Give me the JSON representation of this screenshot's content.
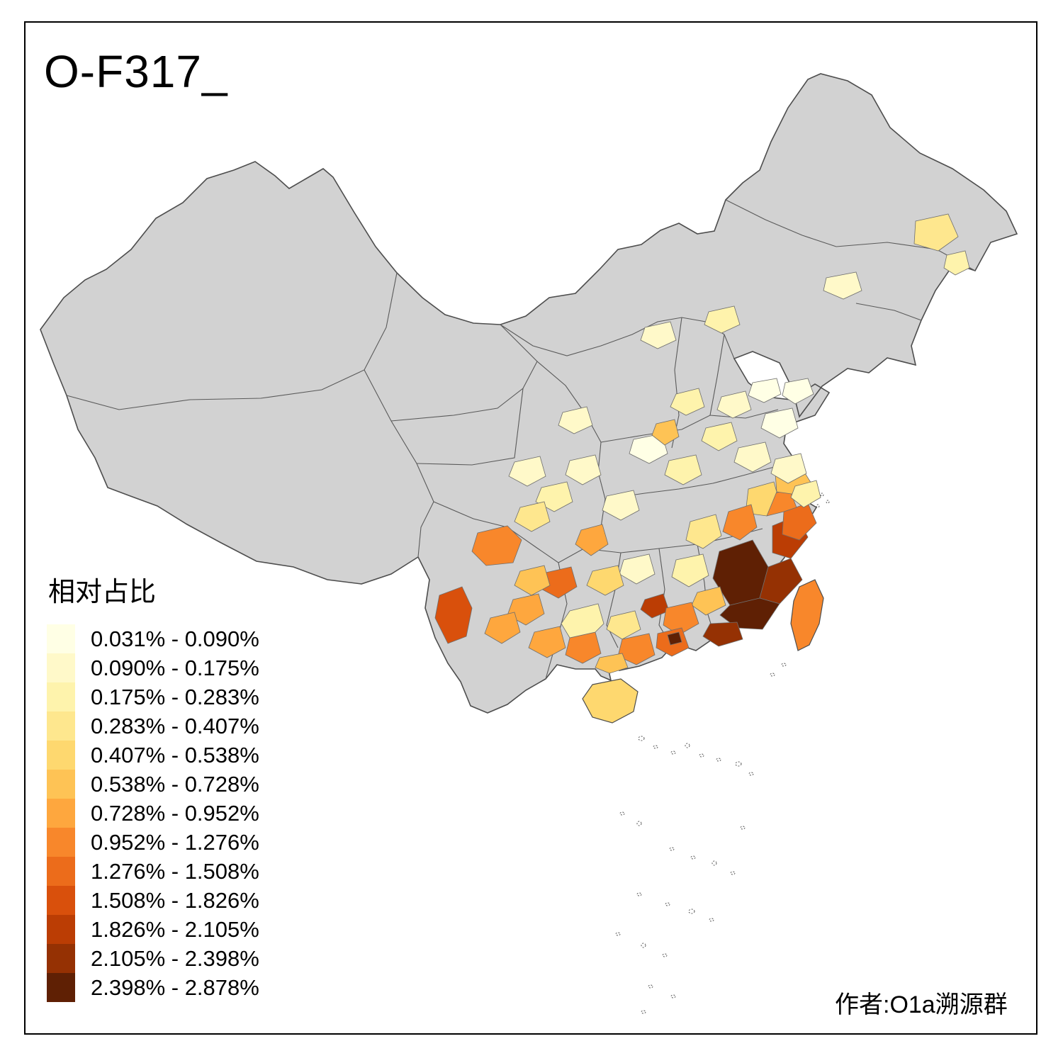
{
  "title": "O-F317_",
  "credit": "作者:O1a溯源群",
  "legend": {
    "title": "相对占比",
    "items": [
      "0.031% - 0.090%",
      "0.090% - 0.175%",
      "0.175% - 0.283%",
      "0.283% - 0.407%",
      "0.407% - 0.538%",
      "0.538% - 0.728%",
      "0.728% - 0.952%",
      "0.952% - 1.276%",
      "1.276% - 1.508%",
      "1.508% - 1.826%",
      "1.826% - 2.105%",
      "2.105% - 2.398%",
      "2.398% - 2.878%"
    ]
  },
  "palette": {
    "classes": [
      "#FFFFE5",
      "#FFF9C9",
      "#FEF3AC",
      "#FEE78E",
      "#FED86F",
      "#FEC355",
      "#FEA73E",
      "#F8872B",
      "#EC6C1B",
      "#D9500C",
      "#BB3D04",
      "#953103",
      "#5F2004"
    ],
    "base": "#D2D2D2",
    "border": "#4D4D4D",
    "province_border": "#5A5A5A",
    "background": "#FFFFFF"
  }
}
